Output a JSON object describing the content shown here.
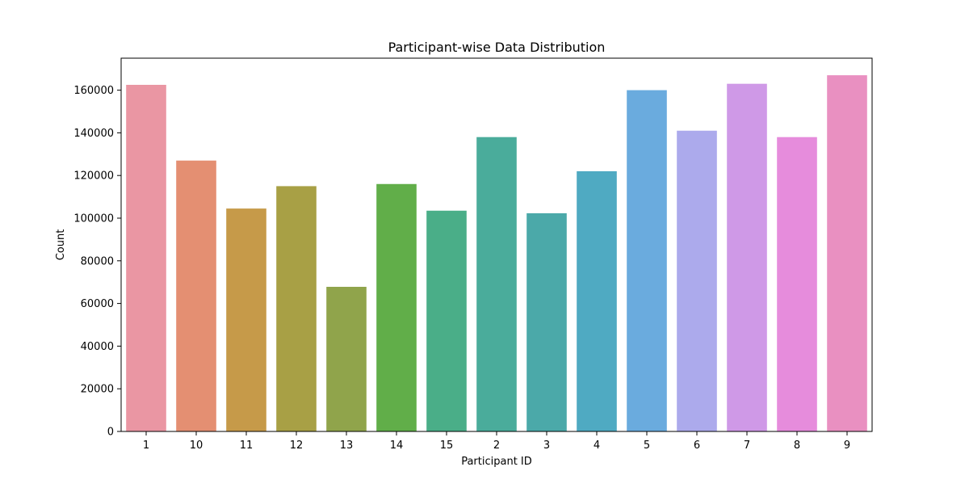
{
  "colors": {
    "background": "#ffffff",
    "axis": "#000000",
    "bars": [
      "#ea96a3",
      "#e48f72",
      "#c69a49",
      "#a8a045",
      "#90a44b",
      "#61ae49",
      "#4aae88",
      "#4aac9b",
      "#4ba9a9",
      "#4faac2",
      "#6aabde",
      "#acaaec",
      "#cf99e7",
      "#e68cdc",
      "#e990c1"
    ]
  },
  "chart_data": {
    "type": "bar",
    "title": "Participant-wise Data Distribution",
    "xlabel": "Participant ID",
    "ylabel": "Count",
    "categories": [
      "1",
      "10",
      "11",
      "12",
      "13",
      "14",
      "15",
      "2",
      "3",
      "4",
      "5",
      "6",
      "7",
      "8",
      "9"
    ],
    "values": [
      162500,
      127000,
      104500,
      115000,
      67800,
      116000,
      103500,
      138000,
      102300,
      122000,
      160000,
      141000,
      163000,
      138000,
      167000
    ],
    "ylim": [
      0,
      175000
    ],
    "yticks": [
      0,
      20000,
      40000,
      60000,
      80000,
      100000,
      120000,
      140000,
      160000
    ],
    "ytick_labels": [
      "0",
      "20000",
      "40000",
      "60000",
      "80000",
      "100000",
      "120000",
      "140000",
      "160000"
    ],
    "grid": false,
    "legend": "none"
  }
}
